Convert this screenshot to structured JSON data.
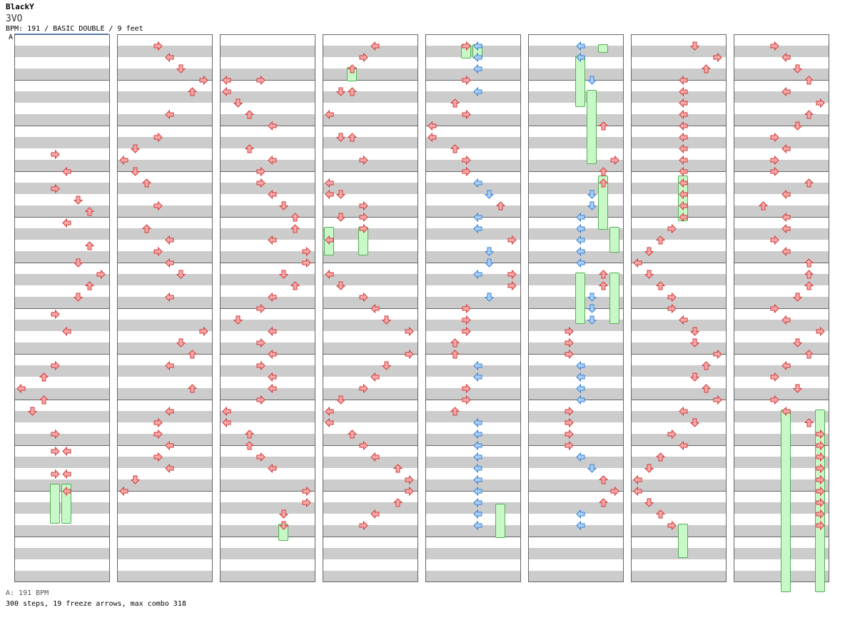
{
  "song": {
    "title": "BlackY",
    "artist": "3VO",
    "info": "BPM: 191 / BASIC DOUBLE / 9 feet"
  },
  "bpm_marker": "A",
  "footer": {
    "bpm": "A: 191 BPM",
    "stats": "300 steps, 19 freeze arrows, max combo 318"
  },
  "colors": {
    "band": "#cccccc",
    "arrow_red": "#f7a8a8",
    "arrow_red_stroke": "#d33a3a",
    "arrow_blue": "#a8d0f7",
    "arrow_blue_stroke": "#3a7fd3",
    "arrow_pink": "#f5b6f5",
    "arrow_pink_stroke": "#c050c0",
    "freeze": "#c8f7c8",
    "freeze_stroke": "#55b055",
    "bpm_line": "#4a90d9"
  },
  "chart": {
    "columns": 8,
    "measures_per_column": 12,
    "lanes": [
      "P1-Left",
      "P1-Down",
      "P1-Up",
      "P1-Right",
      "P2-Left",
      "P2-Down",
      "P2-Up",
      "P2-Right"
    ],
    "notes": [
      [
        0,
        40,
        3
      ],
      [
        0,
        46,
        4
      ],
      [
        0,
        52,
        3
      ],
      [
        0,
        56,
        5
      ],
      [
        0,
        60,
        6
      ],
      [
        0,
        64,
        4
      ],
      [
        0,
        72,
        6
      ],
      [
        0,
        78,
        5
      ],
      [
        0,
        82,
        7
      ],
      [
        0,
        86,
        6
      ],
      [
        0,
        90,
        5
      ],
      [
        0,
        96,
        3
      ],
      [
        0,
        102,
        4
      ],
      [
        0,
        114,
        3
      ],
      [
        0,
        118,
        2
      ],
      [
        0,
        122,
        0
      ],
      [
        0,
        126,
        2
      ],
      [
        0,
        130,
        1
      ],
      [
        0,
        138,
        3
      ],
      [
        0,
        144,
        3
      ],
      [
        0,
        144,
        4
      ],
      [
        0,
        152,
        3
      ],
      [
        0,
        152,
        4
      ],
      [
        0,
        158,
        4
      ],
      [
        1,
        2,
        3
      ],
      [
        1,
        6,
        4
      ],
      [
        1,
        10,
        5
      ],
      [
        1,
        14,
        7
      ],
      [
        1,
        18,
        6
      ],
      [
        1,
        26,
        4
      ],
      [
        1,
        34,
        3
      ],
      [
        1,
        38,
        1
      ],
      [
        1,
        42,
        0
      ],
      [
        1,
        46,
        1
      ],
      [
        1,
        50,
        2
      ],
      [
        1,
        58,
        3
      ],
      [
        1,
        66,
        2
      ],
      [
        1,
        70,
        4
      ],
      [
        1,
        74,
        3
      ],
      [
        1,
        78,
        4
      ],
      [
        1,
        82,
        5
      ],
      [
        1,
        90,
        4
      ],
      [
        1,
        102,
        7
      ],
      [
        1,
        106,
        5
      ],
      [
        1,
        110,
        6
      ],
      [
        1,
        114,
        4
      ],
      [
        1,
        122,
        6
      ],
      [
        1,
        130,
        4
      ],
      [
        1,
        134,
        3
      ],
      [
        1,
        138,
        3
      ],
      [
        1,
        142,
        4
      ],
      [
        1,
        146,
        3
      ],
      [
        1,
        150,
        4
      ],
      [
        1,
        154,
        1
      ],
      [
        1,
        158,
        0
      ],
      [
        2,
        14,
        0
      ],
      [
        2,
        14,
        3
      ],
      [
        2,
        18,
        0
      ],
      [
        2,
        22,
        1
      ],
      [
        2,
        26,
        2
      ],
      [
        2,
        30,
        4
      ],
      [
        2,
        38,
        2
      ],
      [
        2,
        42,
        4
      ],
      [
        2,
        46,
        3
      ],
      [
        2,
        50,
        3
      ],
      [
        2,
        54,
        4
      ],
      [
        2,
        58,
        5
      ],
      [
        2,
        62,
        6
      ],
      [
        2,
        66,
        6
      ],
      [
        2,
        70,
        4
      ],
      [
        2,
        74,
        7
      ],
      [
        2,
        78,
        7
      ],
      [
        2,
        82,
        5
      ],
      [
        2,
        86,
        6
      ],
      [
        2,
        90,
        4
      ],
      [
        2,
        94,
        3
      ],
      [
        2,
        98,
        1
      ],
      [
        2,
        102,
        4
      ],
      [
        2,
        106,
        3
      ],
      [
        2,
        110,
        4
      ],
      [
        2,
        114,
        3
      ],
      [
        2,
        118,
        4
      ],
      [
        2,
        122,
        4
      ],
      [
        2,
        126,
        3
      ],
      [
        2,
        130,
        0
      ],
      [
        2,
        134,
        0
      ],
      [
        2,
        138,
        2
      ],
      [
        2,
        142,
        2
      ],
      [
        2,
        146,
        3
      ],
      [
        2,
        150,
        4
      ],
      [
        2,
        158,
        7
      ],
      [
        2,
        162,
        7
      ],
      [
        2,
        166,
        5
      ],
      [
        2,
        170,
        5
      ],
      [
        3,
        2,
        4
      ],
      [
        3,
        6,
        3
      ],
      [
        3,
        10,
        2
      ],
      [
        3,
        18,
        1
      ],
      [
        3,
        18,
        2
      ],
      [
        3,
        26,
        0
      ],
      [
        3,
        34,
        1
      ],
      [
        3,
        34,
        2
      ],
      [
        3,
        42,
        3
      ],
      [
        3,
        50,
        0
      ],
      [
        3,
        54,
        0
      ],
      [
        3,
        54,
        1
      ],
      [
        3,
        58,
        3
      ],
      [
        3,
        62,
        1
      ],
      [
        3,
        62,
        3
      ],
      [
        3,
        66,
        3
      ],
      [
        3,
        70,
        0
      ],
      [
        3,
        82,
        0
      ],
      [
        3,
        86,
        1
      ],
      [
        3,
        90,
        3
      ],
      [
        3,
        94,
        4
      ],
      [
        3,
        98,
        5
      ],
      [
        3,
        102,
        7
      ],
      [
        3,
        110,
        7
      ],
      [
        3,
        114,
        5
      ],
      [
        3,
        118,
        4
      ],
      [
        3,
        122,
        3
      ],
      [
        3,
        126,
        1
      ],
      [
        3,
        130,
        0
      ],
      [
        3,
        134,
        0
      ],
      [
        3,
        138,
        2
      ],
      [
        3,
        142,
        3
      ],
      [
        3,
        146,
        4
      ],
      [
        3,
        150,
        6
      ],
      [
        3,
        154,
        7
      ],
      [
        3,
        158,
        7
      ],
      [
        3,
        162,
        6
      ],
      [
        3,
        166,
        4
      ],
      [
        3,
        170,
        3
      ],
      [
        4,
        2,
        3
      ],
      [
        4,
        2,
        4
      ],
      [
        4,
        6,
        4
      ],
      [
        4,
        10,
        4
      ],
      [
        4,
        14,
        3
      ],
      [
        4,
        18,
        4
      ],
      [
        4,
        22,
        2
      ],
      [
        4,
        26,
        3
      ],
      [
        4,
        30,
        0
      ],
      [
        4,
        34,
        0
      ],
      [
        4,
        38,
        2
      ],
      [
        4,
        42,
        3
      ],
      [
        4,
        46,
        3
      ],
      [
        4,
        50,
        4
      ],
      [
        4,
        54,
        5
      ],
      [
        4,
        58,
        6
      ],
      [
        4,
        62,
        4
      ],
      [
        4,
        66,
        4
      ],
      [
        4,
        70,
        7
      ],
      [
        4,
        74,
        5
      ],
      [
        4,
        78,
        5
      ],
      [
        4,
        82,
        4
      ],
      [
        4,
        82,
        7
      ],
      [
        4,
        86,
        7
      ],
      [
        4,
        90,
        5
      ],
      [
        4,
        94,
        3
      ],
      [
        4,
        98,
        3
      ],
      [
        4,
        102,
        3
      ],
      [
        4,
        106,
        2
      ],
      [
        4,
        110,
        2
      ],
      [
        4,
        114,
        4
      ],
      [
        4,
        118,
        4
      ],
      [
        4,
        122,
        3
      ],
      [
        4,
        126,
        3
      ],
      [
        4,
        130,
        2
      ],
      [
        4,
        134,
        4
      ],
      [
        4,
        138,
        4
      ],
      [
        4,
        142,
        4
      ],
      [
        4,
        146,
        4
      ],
      [
        4,
        150,
        4
      ],
      [
        4,
        154,
        4
      ],
      [
        4,
        158,
        4
      ],
      [
        4,
        162,
        4
      ],
      [
        4,
        166,
        4
      ],
      [
        4,
        170,
        4
      ],
      [
        5,
        2,
        4
      ],
      [
        5,
        6,
        4
      ],
      [
        5,
        14,
        5
      ],
      [
        5,
        30,
        6
      ],
      [
        5,
        42,
        7
      ],
      [
        5,
        46,
        6
      ],
      [
        5,
        50,
        6
      ],
      [
        5,
        54,
        5
      ],
      [
        5,
        58,
        5
      ],
      [
        5,
        62,
        4
      ],
      [
        5,
        66,
        4
      ],
      [
        5,
        70,
        4
      ],
      [
        5,
        74,
        4
      ],
      [
        5,
        78,
        4
      ],
      [
        5,
        82,
        6
      ],
      [
        5,
        86,
        6
      ],
      [
        5,
        90,
        5
      ],
      [
        5,
        94,
        5
      ],
      [
        5,
        98,
        5
      ],
      [
        5,
        102,
        3
      ],
      [
        5,
        106,
        3
      ],
      [
        5,
        110,
        3
      ],
      [
        5,
        114,
        4
      ],
      [
        5,
        118,
        4
      ],
      [
        5,
        122,
        4
      ],
      [
        5,
        126,
        4
      ],
      [
        5,
        130,
        3
      ],
      [
        5,
        134,
        3
      ],
      [
        5,
        138,
        3
      ],
      [
        5,
        142,
        3
      ],
      [
        5,
        146,
        4
      ],
      [
        5,
        150,
        5
      ],
      [
        5,
        154,
        6
      ],
      [
        5,
        158,
        7
      ],
      [
        5,
        162,
        6
      ],
      [
        5,
        166,
        4
      ],
      [
        5,
        170,
        4
      ],
      [
        6,
        2,
        5
      ],
      [
        6,
        6,
        7
      ],
      [
        6,
        10,
        6
      ],
      [
        6,
        14,
        4
      ],
      [
        6,
        18,
        4
      ],
      [
        6,
        22,
        4
      ],
      [
        6,
        26,
        4
      ],
      [
        6,
        30,
        4
      ],
      [
        6,
        34,
        4
      ],
      [
        6,
        38,
        4
      ],
      [
        6,
        42,
        4
      ],
      [
        6,
        46,
        4
      ],
      [
        6,
        50,
        4
      ],
      [
        6,
        54,
        4
      ],
      [
        6,
        58,
        4
      ],
      [
        6,
        62,
        4
      ],
      [
        6,
        66,
        3
      ],
      [
        6,
        70,
        2
      ],
      [
        6,
        74,
        1
      ],
      [
        6,
        78,
        0
      ],
      [
        6,
        82,
        1
      ],
      [
        6,
        86,
        2
      ],
      [
        6,
        90,
        3
      ],
      [
        6,
        94,
        3
      ],
      [
        6,
        98,
        4
      ],
      [
        6,
        102,
        5
      ],
      [
        6,
        106,
        5
      ],
      [
        6,
        110,
        7
      ],
      [
        6,
        114,
        6
      ],
      [
        6,
        118,
        5
      ],
      [
        6,
        122,
        6
      ],
      [
        6,
        126,
        7
      ],
      [
        6,
        130,
        4
      ],
      [
        6,
        134,
        5
      ],
      [
        6,
        138,
        3
      ],
      [
        6,
        142,
        4
      ],
      [
        6,
        146,
        2
      ],
      [
        6,
        150,
        1
      ],
      [
        6,
        154,
        0
      ],
      [
        6,
        158,
        0
      ],
      [
        6,
        162,
        1
      ],
      [
        6,
        166,
        2
      ],
      [
        6,
        170,
        3
      ],
      [
        7,
        2,
        3
      ],
      [
        7,
        6,
        4
      ],
      [
        7,
        10,
        5
      ],
      [
        7,
        14,
        6
      ],
      [
        7,
        18,
        4
      ],
      [
        7,
        22,
        7
      ],
      [
        7,
        26,
        6
      ],
      [
        7,
        30,
        5
      ],
      [
        7,
        34,
        3
      ],
      [
        7,
        38,
        4
      ],
      [
        7,
        42,
        3
      ],
      [
        7,
        46,
        3
      ],
      [
        7,
        50,
        6
      ],
      [
        7,
        54,
        4
      ],
      [
        7,
        58,
        2
      ],
      [
        7,
        62,
        4
      ],
      [
        7,
        66,
        4
      ],
      [
        7,
        70,
        3
      ],
      [
        7,
        74,
        4
      ],
      [
        7,
        78,
        6
      ],
      [
        7,
        82,
        6
      ],
      [
        7,
        86,
        6
      ],
      [
        7,
        90,
        5
      ],
      [
        7,
        94,
        3
      ],
      [
        7,
        98,
        4
      ],
      [
        7,
        102,
        7
      ],
      [
        7,
        106,
        5
      ],
      [
        7,
        110,
        6
      ],
      [
        7,
        114,
        4
      ],
      [
        7,
        118,
        3
      ],
      [
        7,
        122,
        5
      ],
      [
        7,
        126,
        3
      ],
      [
        7,
        130,
        4
      ],
      [
        7,
        134,
        6
      ],
      [
        7,
        138,
        7
      ],
      [
        7,
        142,
        7
      ],
      [
        7,
        146,
        7
      ],
      [
        7,
        150,
        7
      ],
      [
        7,
        154,
        7
      ],
      [
        7,
        158,
        7
      ],
      [
        7,
        162,
        7
      ],
      [
        7,
        166,
        7
      ],
      [
        7,
        170,
        7
      ]
    ],
    "freezes": [
      [
        0,
        156,
        0,
        3,
        14
      ],
      [
        0,
        156,
        0,
        4,
        14
      ],
      [
        2,
        170,
        0,
        5,
        6
      ],
      [
        3,
        10,
        0,
        2,
        5
      ],
      [
        3,
        66,
        0,
        0,
        10
      ],
      [
        3,
        66,
        0,
        3,
        10
      ],
      [
        4,
        2,
        0,
        3,
        5
      ],
      [
        4,
        2,
        0,
        4,
        5
      ],
      [
        4,
        163,
        0,
        6,
        12
      ],
      [
        5,
        2,
        0,
        6,
        3
      ],
      [
        5,
        6,
        0,
        4,
        18
      ],
      [
        5,
        18,
        0,
        5,
        26
      ],
      [
        5,
        48,
        0,
        6,
        19
      ],
      [
        5,
        66,
        0,
        7,
        9
      ],
      [
        5,
        82,
        0,
        4,
        18
      ],
      [
        5,
        82,
        0,
        7,
        18
      ],
      [
        6,
        48,
        0,
        4,
        16
      ],
      [
        6,
        170,
        0,
        4,
        12
      ],
      [
        7,
        130,
        0,
        4,
        64
      ],
      [
        7,
        130,
        0,
        7,
        64
      ]
    ]
  }
}
